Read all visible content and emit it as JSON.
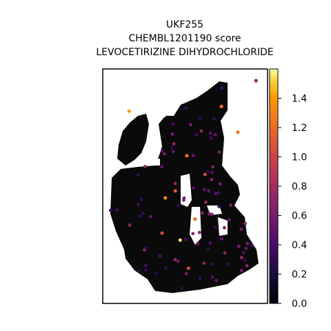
{
  "chart_data": {
    "type": "scatter",
    "title_lines": [
      "UKF255",
      "CHEMBL1201190 score",
      "LEVOCETIRIZINE DIHYDROCHLORIDE"
    ],
    "xlabel": "",
    "ylabel": "",
    "colorbar": {
      "colormap": "inferno",
      "range": [
        0.0,
        1.6
      ],
      "ticks": [
        0.0,
        0.2,
        0.4,
        0.6,
        0.8,
        1.0,
        1.2,
        1.4
      ],
      "tick_labels": [
        "0.0",
        "0.2",
        "0.4",
        "0.6",
        "0.8",
        "1.0",
        "1.2",
        "1.4"
      ]
    },
    "grid": false,
    "note_values": "spot scores in [0, 1.6]; majority near 0.0 (black), scattered purple 0.3–0.7, a few orange 1.0–1.4 and pale yellow ~1.55",
    "highlight_spots": [
      {
        "x": 0.16,
        "y": 0.82,
        "value": 1.4
      },
      {
        "x": 0.47,
        "y": 0.27,
        "value": 1.55
      },
      {
        "x": 0.56,
        "y": 0.36,
        "value": 1.2
      },
      {
        "x": 0.38,
        "y": 0.45,
        "value": 1.3
      },
      {
        "x": 0.44,
        "y": 0.48,
        "value": 1.1
      },
      {
        "x": 0.62,
        "y": 0.55,
        "value": 1.0
      },
      {
        "x": 0.72,
        "y": 0.84,
        "value": 1.2
      },
      {
        "x": 0.82,
        "y": 0.73,
        "value": 1.25
      },
      {
        "x": 0.51,
        "y": 0.63,
        "value": 1.2
      },
      {
        "x": 0.36,
        "y": 0.3,
        "value": 1.0
      },
      {
        "x": 0.52,
        "y": 0.15,
        "value": 1.0
      },
      {
        "x": 0.93,
        "y": 0.95,
        "value": 0.7
      }
    ]
  }
}
